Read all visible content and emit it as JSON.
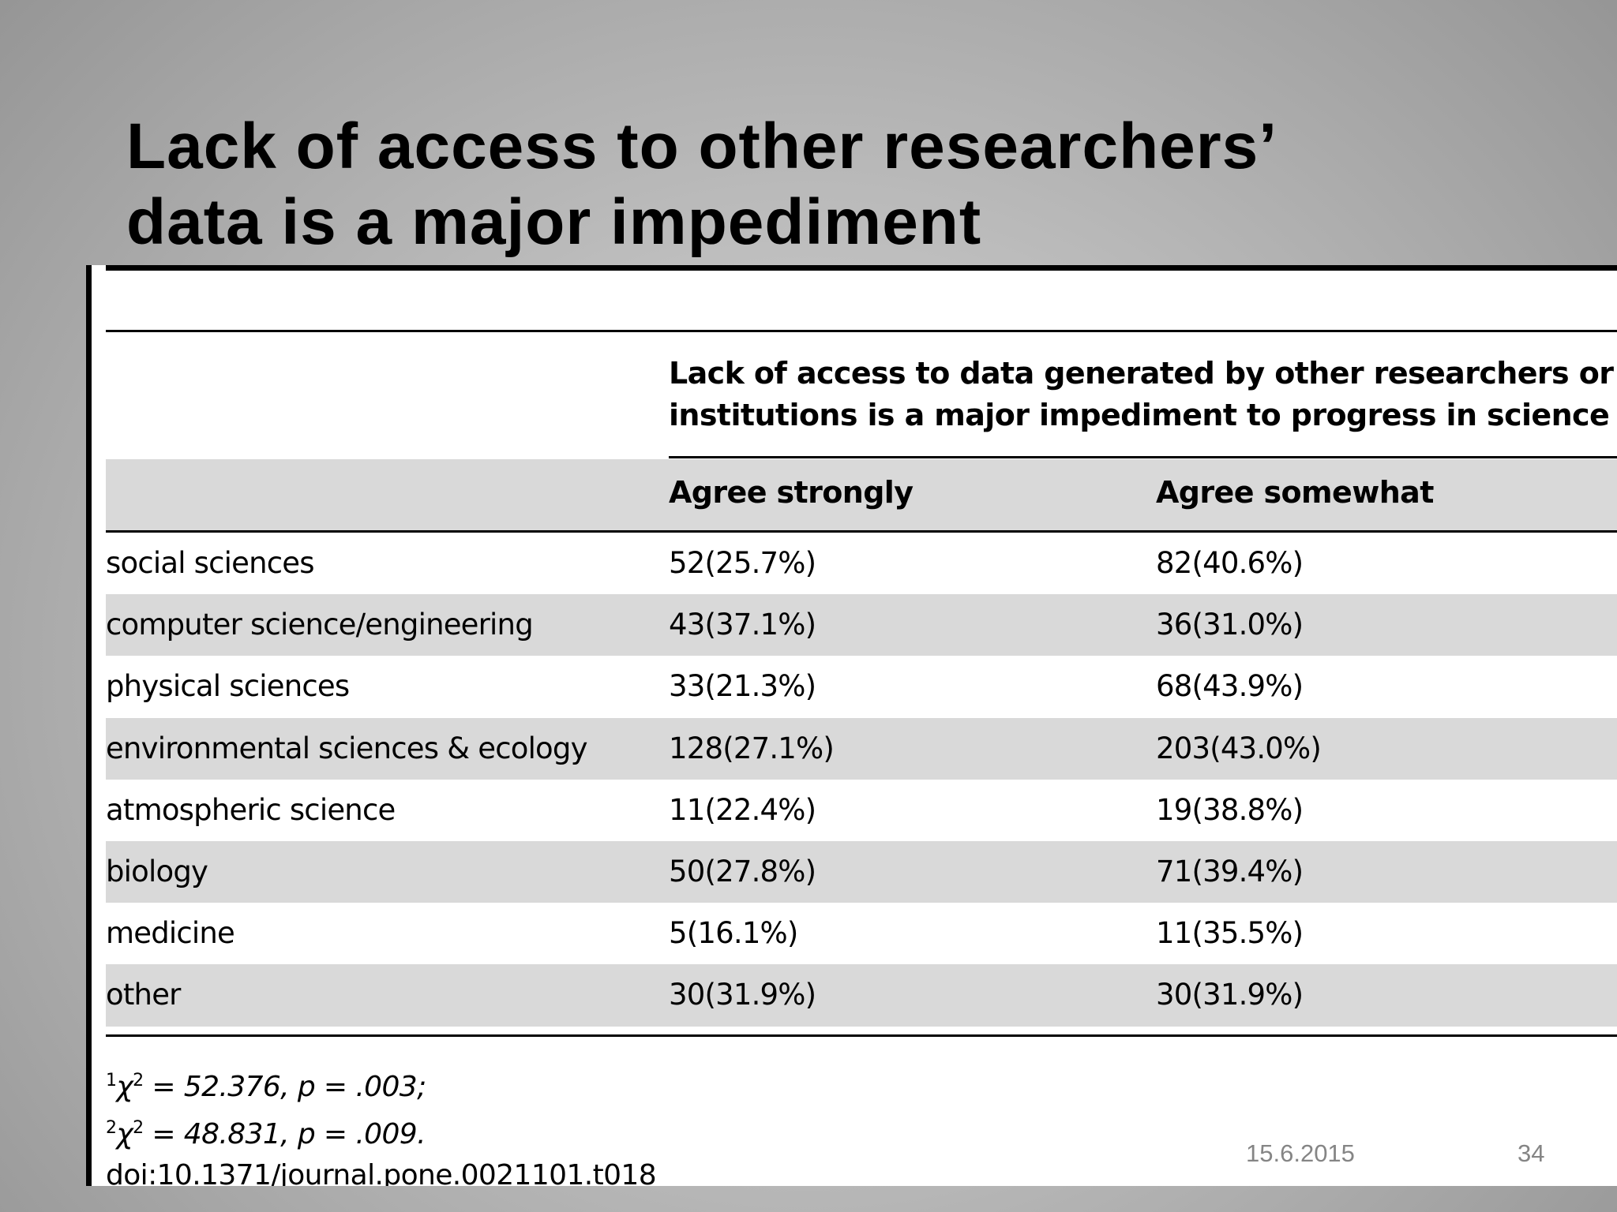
{
  "slide": {
    "title_line1": "Lack of access to other researchers’",
    "title_line2": "data is a major impediment",
    "date": "15.6.2015",
    "page_number": "34"
  },
  "table": {
    "spanner_line1": "Lack of access to data generated by other researchers or",
    "spanner_line2": "institutions is a major impediment to progress in science",
    "columns": [
      "",
      "Agree strongly",
      "Agree somewhat"
    ],
    "rows": [
      {
        "field": "social sciences",
        "agree_strongly": "52(25.7%)",
        "agree_somewhat": "82(40.6%)"
      },
      {
        "field": "computer science/engineering",
        "agree_strongly": "43(37.1%)",
        "agree_somewhat": "36(31.0%)"
      },
      {
        "field": "physical sciences",
        "agree_strongly": "33(21.3%)",
        "agree_somewhat": "68(43.9%)"
      },
      {
        "field": "environmental sciences & ecology",
        "agree_strongly": "128(27.1%)",
        "agree_somewhat": "203(43.0%)"
      },
      {
        "field": "atmospheric science",
        "agree_strongly": "11(22.4%)",
        "agree_somewhat": "19(38.8%)"
      },
      {
        "field": "biology",
        "agree_strongly": "50(27.8%)",
        "agree_somewhat": "71(39.4%)"
      },
      {
        "field": "medicine",
        "agree_strongly": "5(16.1%)",
        "agree_somewhat": "11(35.5%)"
      },
      {
        "field": "other",
        "agree_strongly": "30(31.9%)",
        "agree_somewhat": "30(31.9%)"
      }
    ],
    "footnotes": [
      {
        "marker": "1",
        "symbol": "χ",
        "exp": "2",
        "text": " = 52.376, p = .003;"
      },
      {
        "marker": "2",
        "symbol": "χ",
        "exp": "2",
        "text": " = 48.831, p = .009."
      }
    ],
    "doi": "doi:10.1371/journal.pone.0021101.t018"
  },
  "colors": {
    "background_center": "#cecece",
    "background_edge": "#939393",
    "row_shade": "#d9d9d9",
    "footer_text": "#858585"
  }
}
